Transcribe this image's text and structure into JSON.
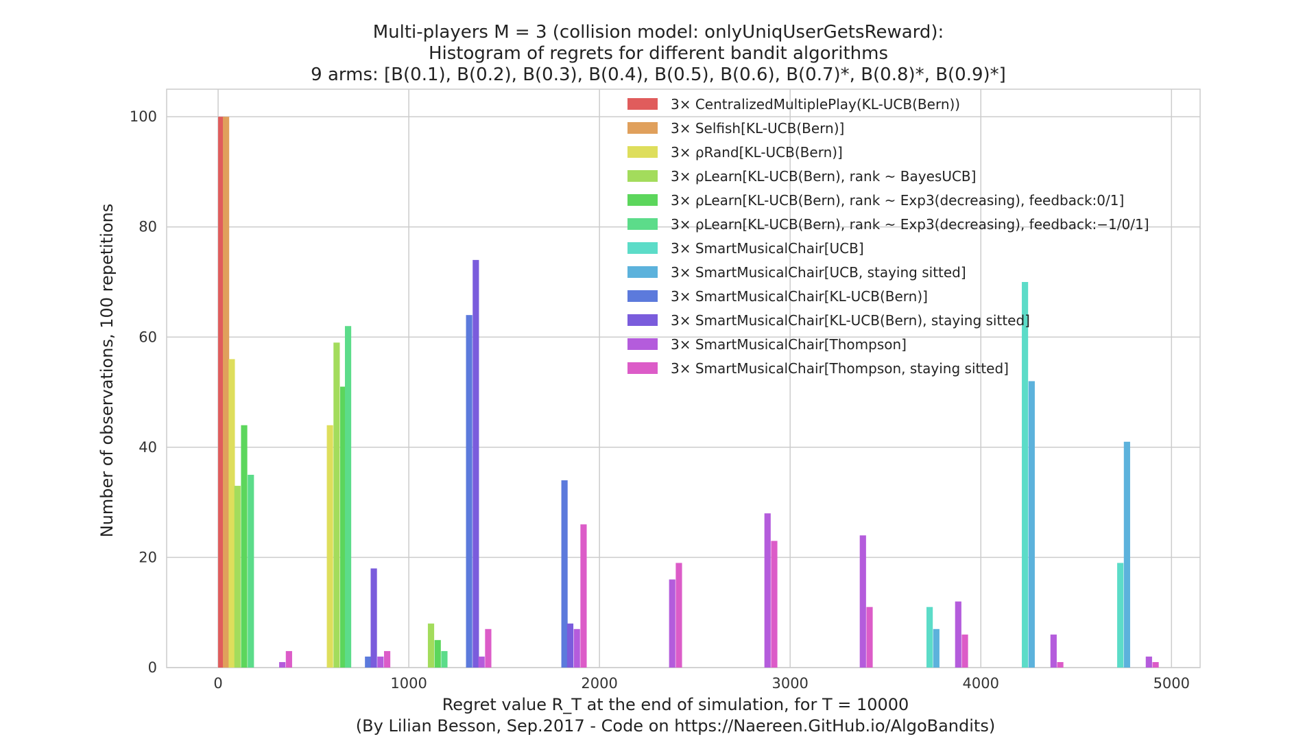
{
  "chart_data": {
    "type": "bar",
    "title": [
      "Multi-players M = 3 (collision model: onlyUniqUserGetsReward):",
      "Histogram of regrets for different bandit algorithms",
      "9 arms: [B(0.1), B(0.2), B(0.3), B(0.4), B(0.5), B(0.6), B(0.7)*, B(0.8)*, B(0.9)*]"
    ],
    "xlabel": "Regret value R_T at the end of simulation, for T = 10000",
    "ylabel": "Number of observations, 100 repetitions",
    "credit": "(By Lilian Besson, Sep.2017 - Code on https://Naereen.GitHub.io/AlgoBandits)",
    "xlim": [
      -270,
      5150
    ],
    "ylim": [
      0,
      105
    ],
    "xticks": [
      0,
      1000,
      2000,
      3000,
      4000,
      5000
    ],
    "yticks": [
      0,
      20,
      40,
      60,
      80,
      100
    ],
    "grid": true,
    "legend_position": "top-right",
    "series": [
      {
        "name": "3× CentralizedMultiplePlay(KL-UCB(Bern))",
        "color": "#e05c5c",
        "bars": [
          [
            0,
            100
          ]
        ]
      },
      {
        "name": "3× Selfish[KL-UCB(Bern)]",
        "color": "#e0a05c",
        "bars": [
          [
            25,
            100
          ]
        ]
      },
      {
        "name": "3× ρRand[KL-UCB(Bern)]",
        "color": "#dede5c",
        "bars": [
          [
            55,
            56
          ],
          [
            570,
            44
          ]
        ]
      },
      {
        "name": "3× ρLearn[KL-UCB(Bern), rank ~ BayesUCB]",
        "color": "#a3dc5c",
        "bars": [
          [
            85,
            33
          ],
          [
            605,
            59
          ],
          [
            1100,
            8
          ]
        ]
      },
      {
        "name": "3× ρLearn[KL-UCB(Bern), rank ~ Exp3(decreasing), feedback:0/1]",
        "color": "#5cd65c",
        "bars": [
          [
            120,
            44
          ],
          [
            640,
            51
          ],
          [
            1135,
            5
          ]
        ]
      },
      {
        "name": "3× ρLearn[KL-UCB(Bern), rank ~ Exp3(decreasing), feedback:−1/0/1]",
        "color": "#5cdc8a",
        "bars": [
          [
            155,
            35
          ],
          [
            665,
            62
          ],
          [
            1170,
            3
          ]
        ]
      },
      {
        "name": "3× SmartMusicalChair[UCB]",
        "color": "#5cdcc8",
        "bars": [
          [
            3715,
            11
          ],
          [
            4215,
            70
          ],
          [
            4715,
            19
          ]
        ]
      },
      {
        "name": "3× SmartMusicalChair[UCB, staying sitted]",
        "color": "#5cb2dc",
        "bars": [
          [
            3750,
            7
          ],
          [
            4250,
            52
          ],
          [
            4750,
            41
          ]
        ]
      },
      {
        "name": "3× SmartMusicalChair[KL-UCB(Bern)]",
        "color": "#5c7adc",
        "bars": [
          [
            770,
            2
          ],
          [
            1300,
            64
          ],
          [
            1800,
            34
          ]
        ]
      },
      {
        "name": "3× SmartMusicalChair[KL-UCB(Bern), staying sitted]",
        "color": "#7a5cdc",
        "bars": [
          [
            800,
            18
          ],
          [
            1335,
            74
          ],
          [
            1830,
            8
          ]
        ]
      },
      {
        "name": "3× SmartMusicalChair[Thompson]",
        "color": "#b45cdc",
        "bars": [
          [
            320,
            1
          ],
          [
            835,
            2
          ],
          [
            1365,
            2
          ],
          [
            1865,
            7
          ],
          [
            2365,
            16
          ],
          [
            2865,
            28
          ],
          [
            3365,
            24
          ],
          [
            3865,
            12
          ],
          [
            4365,
            6
          ],
          [
            4865,
            2
          ]
        ]
      },
      {
        "name": "3× SmartMusicalChair[Thompson, staying sitted]",
        "color": "#dc5cc8",
        "bars": [
          [
            355,
            3
          ],
          [
            870,
            3
          ],
          [
            1400,
            7
          ],
          [
            1900,
            26
          ],
          [
            2400,
            19
          ],
          [
            2900,
            23
          ],
          [
            3400,
            11
          ],
          [
            3900,
            6
          ],
          [
            4400,
            1
          ],
          [
            4900,
            1
          ]
        ]
      }
    ]
  }
}
